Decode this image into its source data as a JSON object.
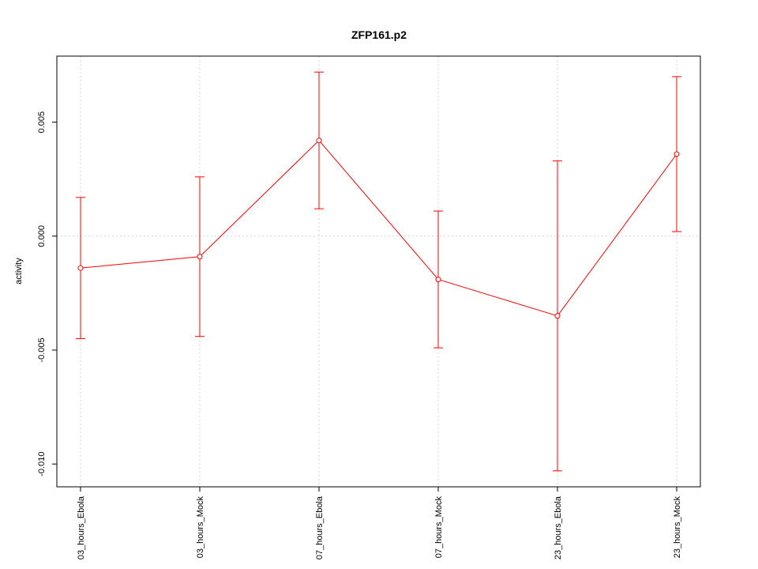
{
  "chart_data": {
    "type": "line_errorbar",
    "title": "ZFP161.p2",
    "y_label": "activity",
    "categories": [
      "03_hours_Ebola",
      "03_hours_Mock",
      "07_hours_Ebola",
      "07_hours_Mock",
      "23_hours_Ebola",
      "23_hours_Mock"
    ],
    "values": [
      -0.0014,
      -0.0009,
      0.0042,
      -0.0019,
      -0.0035,
      0.0036
    ],
    "errors": [
      0.0031,
      0.0035,
      0.003,
      0.003,
      0.0068,
      0.0034
    ],
    "color": "#ff0000",
    "ylim": [
      -0.011,
      0.0079
    ],
    "yticks": [
      {
        "value": -0.01,
        "label": "-0.010"
      },
      {
        "value": -0.005,
        "label": "-0.005"
      },
      {
        "value": 0,
        "label": "0.000"
      },
      {
        "value": 0.005,
        "label": "0.005"
      }
    ],
    "reference_line": 0,
    "grid": true
  }
}
